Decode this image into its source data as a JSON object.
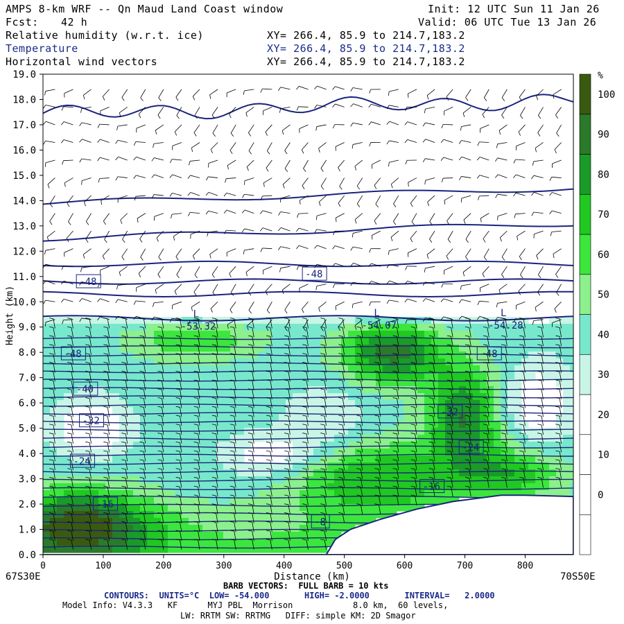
{
  "header": {
    "title": "AMPS 8-km WRF -- Qn Maud Land Coast window",
    "fcst_label": "Fcst:",
    "fcst_value": "42 h",
    "init": "Init: 12 UTC Sun 11 Jan 26",
    "valid": "Valid: 06 UTC Tue 13 Jan 26",
    "fields": [
      {
        "name": "Relative humidity (w.r.t. ice)",
        "xy": "XY= 266.4, 85.9 to 214.7,183.2"
      },
      {
        "name": "Temperature",
        "xy": "XY= 266.4, 85.9 to 214.7,183.2"
      },
      {
        "name": "Horizontal wind vectors",
        "xy": "XY= 266.4, 85.9 to 214.7,183.2"
      }
    ]
  },
  "chart_data": {
    "type": "cross-section contour",
    "xlabel": "Distance (km)",
    "ylabel": "Height (km)",
    "xlim": [
      0,
      880
    ],
    "ylim": [
      0,
      19
    ],
    "x_ticks": [
      0,
      100,
      200,
      300,
      400,
      500,
      600,
      700,
      800
    ],
    "y_ticks": [
      "0.0",
      "1.0",
      "2.0",
      "3.0",
      "4.0",
      "5.0",
      "6.0",
      "7.0",
      "8.0",
      "9.0",
      "10.0",
      "11.0",
      "12.0",
      "13.0",
      "14.0",
      "15.0",
      "16.0",
      "17.0",
      "18.0",
      "19.0"
    ],
    "left_endpoint": "67S30E",
    "right_endpoint": "70S50E",
    "colorbar": {
      "unit": "%",
      "labels": [
        "0",
        "10",
        "20",
        "30",
        "40",
        "50",
        "60",
        "70",
        "80",
        "90",
        "100"
      ],
      "colors": [
        "#ffffff",
        "#ffffff",
        "#ffffff",
        "#ffffff",
        "#c8f5e6",
        "#78e8cc",
        "#8cf08c",
        "#3ce63c",
        "#20c820",
        "#1a9a28",
        "#2a7a2a",
        "#3a5a10"
      ]
    },
    "temperature_labels": [
      {
        "text": "-48",
        "x": 60,
        "y": 10.8
      },
      {
        "text": "-48",
        "x": 435,
        "y": 11.1
      },
      {
        "text": "-48",
        "x": 35,
        "y": 7.95
      },
      {
        "text": "-40",
        "x": 55,
        "y": 6.55
      },
      {
        "text": "-32",
        "x": 65,
        "y": 5.3
      },
      {
        "text": "-24",
        "x": 50,
        "y": 3.7
      },
      {
        "text": "-16",
        "x": 88,
        "y": 2.0
      },
      {
        "text": "-8",
        "x": 450,
        "y": 1.3
      },
      {
        "text": "-48",
        "x": 725,
        "y": 7.95
      },
      {
        "text": "-32",
        "x": 660,
        "y": 5.65
      },
      {
        "text": "-24",
        "x": 695,
        "y": 4.25
      },
      {
        "text": "-16",
        "x": 630,
        "y": 2.7
      }
    ],
    "lows": [
      {
        "text": "-53.32",
        "x": 240,
        "y": 9.0
      },
      {
        "text": "-54.07",
        "x": 540,
        "y": 9.05
      },
      {
        "text": "-54.28",
        "x": 750,
        "y": 9.05
      }
    ],
    "terrain": [
      {
        "x": 0,
        "h": 0
      },
      {
        "x": 470,
        "h": 0
      },
      {
        "x": 485,
        "h": 0.6
      },
      {
        "x": 510,
        "h": 1.0
      },
      {
        "x": 560,
        "h": 1.4
      },
      {
        "x": 620,
        "h": 1.8
      },
      {
        "x": 680,
        "h": 2.1
      },
      {
        "x": 760,
        "h": 2.35
      },
      {
        "x": 800,
        "h": 2.35
      },
      {
        "x": 880,
        "h": 2.3
      }
    ]
  },
  "footer": {
    "barb_line": "BARB VECTORS:  FULL BARB = 10 kts",
    "contours_line": "CONTOURS:  UNITS=°C  LOW= -54.000       HIGH= -2.0000       INTERVAL=   2.0000",
    "model_line1": "Model Info: V4.3.3   KF      MYJ PBL  Morrison            8.0 km,  60 levels,",
    "model_line2": "LW: RRTM SW: RRTMG   DIFF: simple KM: 2D Smagor"
  }
}
